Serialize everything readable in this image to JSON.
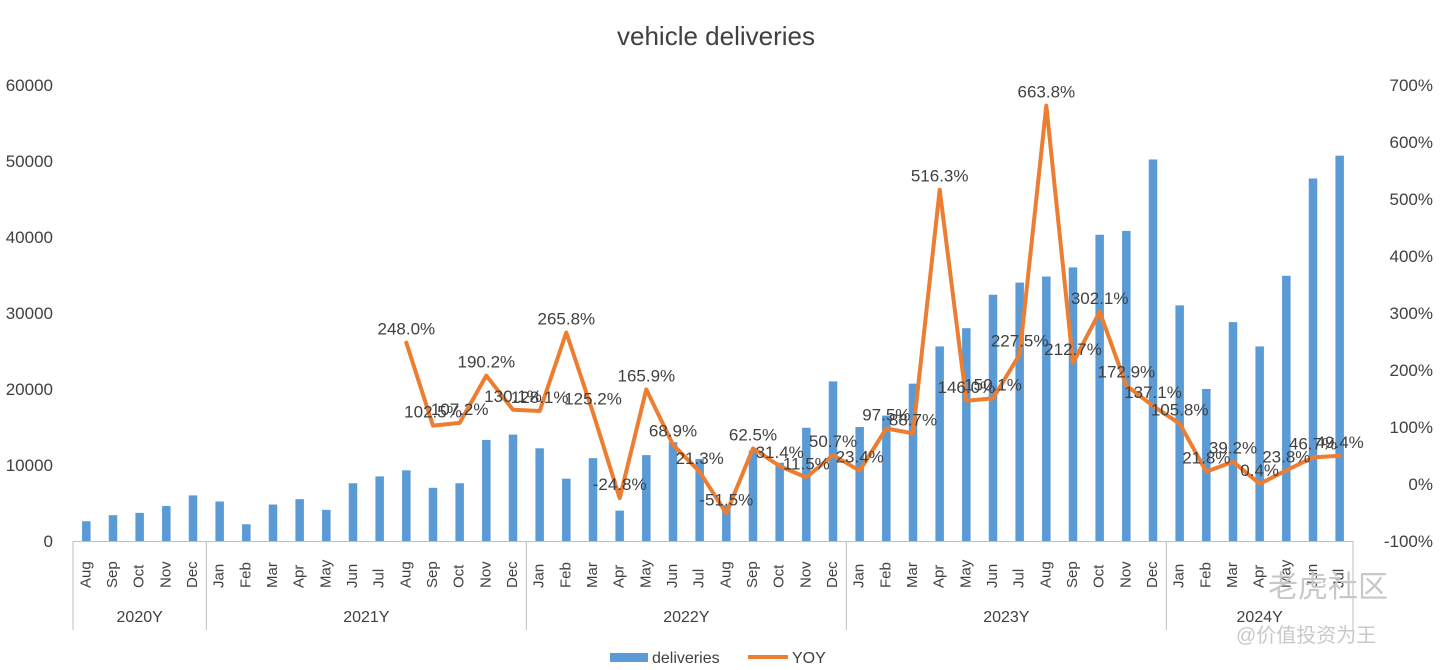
{
  "chart_data": {
    "type": "bar+line",
    "title": "vehicle deliveries",
    "categories": [
      "Aug",
      "Sep",
      "Oct",
      "Nov",
      "Dec",
      "Jan",
      "Feb",
      "Mar",
      "Apr",
      "May",
      "Jun",
      "Jul",
      "Aug",
      "Sep",
      "Oct",
      "Nov",
      "Dec",
      "Jan",
      "Feb",
      "Mar",
      "Apr",
      "May",
      "Jun",
      "Jul",
      "Aug",
      "Sep",
      "Oct",
      "Nov",
      "Dec",
      "Jan",
      "Feb",
      "Mar",
      "Apr",
      "May",
      "Jun",
      "Jul",
      "Aug",
      "Sep",
      "Oct",
      "Nov",
      "Dec",
      "Jan",
      "Feb",
      "Mar",
      "Apr",
      "May",
      "Jun",
      "Jul"
    ],
    "groups": [
      {
        "label": "2020Y",
        "count": 5
      },
      {
        "label": "2021Y",
        "count": 12
      },
      {
        "label": "2022Y",
        "count": 12
      },
      {
        "label": "2023Y",
        "count": 12
      },
      {
        "label": "2024Y",
        "count": 7
      }
    ],
    "series": [
      {
        "name": "deliveries",
        "type": "bar",
        "color": "#5b9bd5",
        "axis": "left",
        "values": [
          2600,
          3400,
          3700,
          4600,
          6000,
          5200,
          2200,
          4800,
          5500,
          4100,
          7600,
          8500,
          9300,
          7000,
          7600,
          13300,
          14000,
          12200,
          8200,
          10900,
          4000,
          11300,
          13000,
          10800,
          4700,
          11900,
          10300,
          14900,
          21000,
          15000,
          16500,
          20700,
          25600,
          28000,
          32400,
          34000,
          34800,
          36000,
          40300,
          40800,
          50200,
          31000,
          20000,
          28800,
          25600,
          34900,
          47700,
          50700
        ]
      },
      {
        "name": "YOY",
        "type": "line",
        "color": "#ed7d31",
        "axis": "right",
        "values": [
          null,
          null,
          null,
          null,
          null,
          null,
          null,
          null,
          null,
          null,
          null,
          null,
          248.0,
          102.5,
          107.2,
          190.2,
          130.1,
          128.1,
          265.8,
          125.2,
          -24.8,
          165.9,
          68.9,
          21.3,
          -51.5,
          62.5,
          31.4,
          11.5,
          50.7,
          23.4,
          97.5,
          88.7,
          516.3,
          146.0,
          150.1,
          227.5,
          663.8,
          212.7,
          302.1,
          172.9,
          137.1,
          105.8,
          21.8,
          39.2,
          0.4,
          23.8,
          46.7,
          49.4
        ],
        "labels": [
          null,
          null,
          null,
          null,
          null,
          null,
          null,
          null,
          null,
          null,
          null,
          null,
          "248.0%",
          "102.5%",
          "107.2%",
          "190.2%",
          "130.1%",
          "128.1%",
          "265.8%",
          "125.2%",
          "-24.8%",
          "165.9%",
          "68.9%",
          "21.3%",
          "-51.5%",
          "62.5%",
          "31.4%",
          "11.5%",
          "50.7%",
          "23.4%",
          "97.5%",
          "88.7%",
          "516.3%",
          "146.0%",
          "150.1%",
          "227.5%",
          "663.8%",
          "212.7%",
          "302.1%",
          "172.9%",
          "137.1%",
          "105.8%",
          "21.8%",
          "39.2%",
          "0.4%",
          "23.8%",
          "46.7%",
          "49.4%"
        ]
      }
    ],
    "ylim": [
      0,
      60000
    ],
    "yticks": [
      "0",
      "10000",
      "20000",
      "30000",
      "40000",
      "50000",
      "60000"
    ],
    "y2lim": [
      -100,
      700
    ],
    "y2ticks": [
      "-100%",
      "0%",
      "100%",
      "200%",
      "300%",
      "400%",
      "500%",
      "600%",
      "700%"
    ],
    "legend": {
      "position": "bottom",
      "entries": [
        "deliveries",
        "YOY"
      ]
    }
  },
  "watermark": {
    "line1": "老虎社区",
    "line2": "@价值投资为王"
  }
}
